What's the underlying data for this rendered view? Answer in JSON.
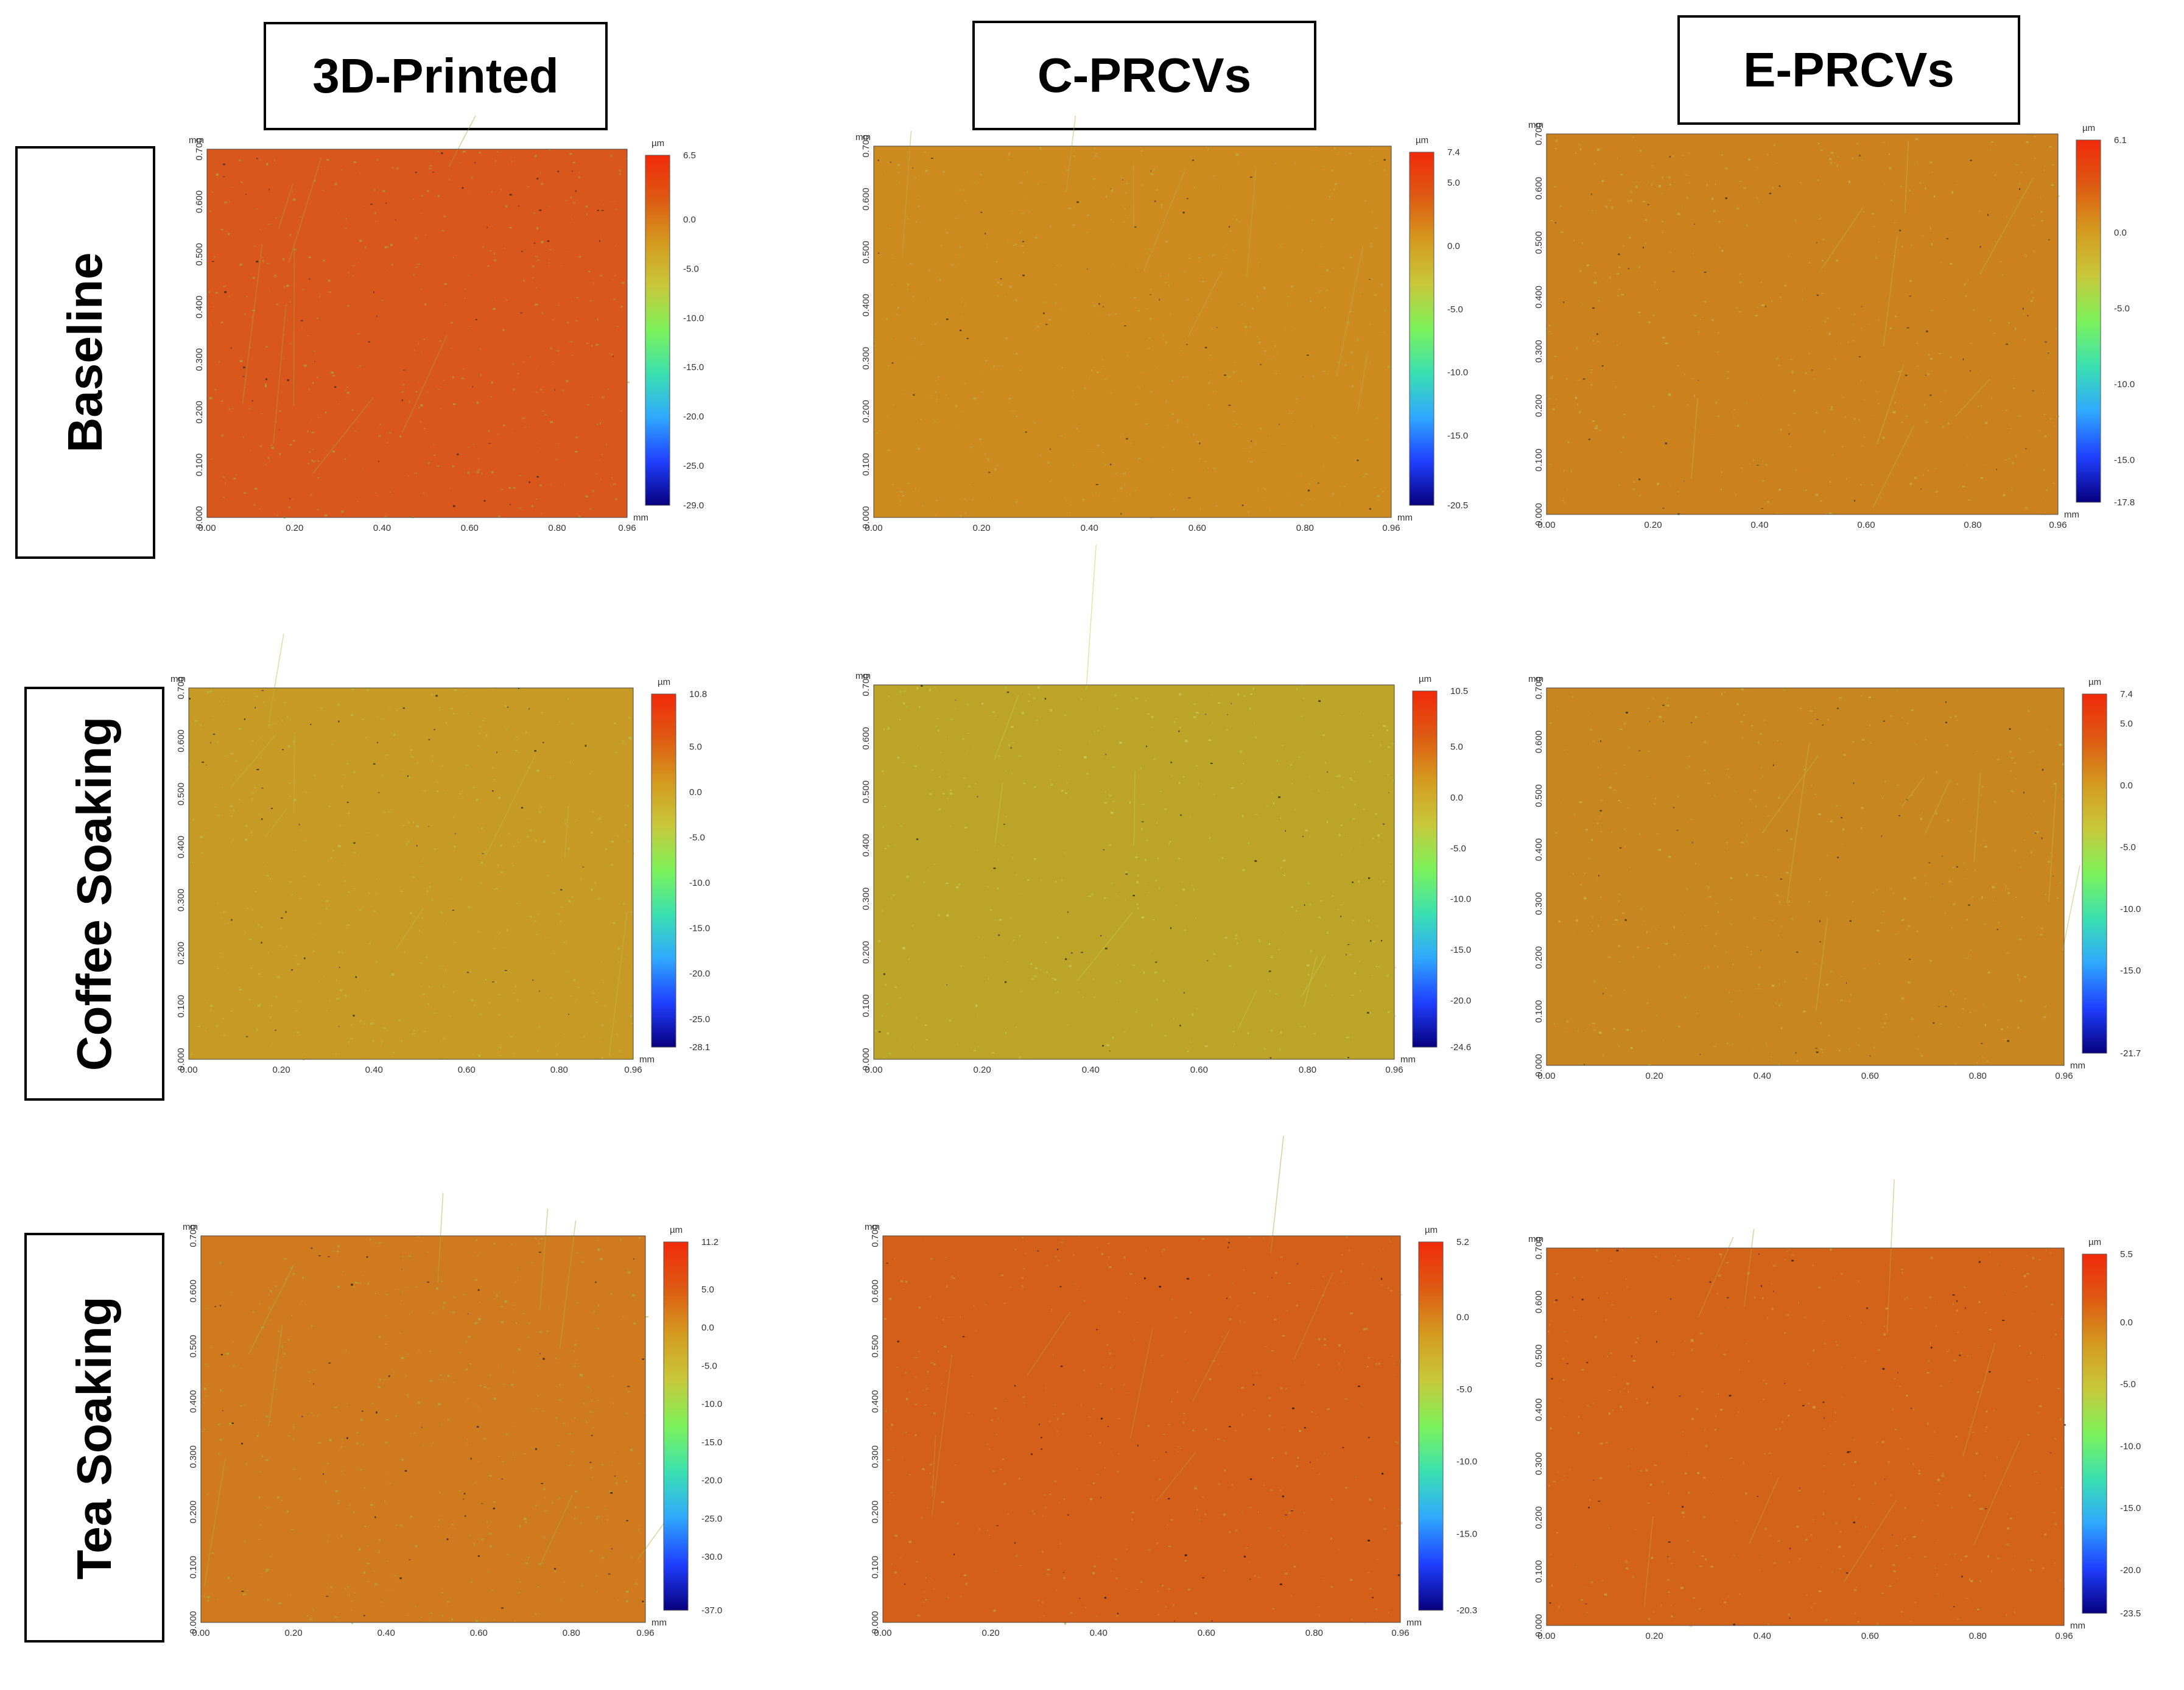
{
  "column_headers": [
    "3D-Printed",
    "C-PRCVs",
    "E-PRCVs"
  ],
  "row_headers": [
    "Baseline",
    "Coffee Soaking",
    "Tea Soaking"
  ],
  "axis": {
    "unit_x": "mm",
    "unit_y": "mm",
    "unit_z": "µm",
    "x_ticks": [
      "0.00",
      "0.20",
      "0.40",
      "0.60",
      "0.80",
      "0.96"
    ],
    "y_ticks": [
      "0.000",
      "0.100",
      "0.200",
      "0.300",
      "0.400",
      "0.500",
      "0.600",
      "0.700"
    ]
  },
  "colormap": [
    "#07007f",
    "#1f3fff",
    "#2fa8ff",
    "#3ae0b0",
    "#7cf25a",
    "#c8c83a",
    "#d49a1e",
    "#de5a12",
    "#f22a0a"
  ],
  "panels": [
    {
      "id": "baseline-3d-printed",
      "color_min": -29.0,
      "color_max": 6.5,
      "colorbar_labels": [
        "6.5",
        "0.0",
        "-5.0",
        "-10.0",
        "-15.0",
        "-20.0",
        "-25.0",
        "-29.0"
      ],
      "surface_color": "#d9561c",
      "speckle_color": "#a3a63a",
      "dark_color": "#2a2a0e"
    },
    {
      "id": "baseline-c-prcvs",
      "color_min": -20.5,
      "color_max": 7.4,
      "colorbar_labels": [
        "7.4",
        "5.0",
        "0.0",
        "-5.0",
        "-10.0",
        "-15.0",
        "-20.5"
      ],
      "surface_color": "#cc8a1f",
      "speckle_color": "#b8b044",
      "dark_color": "#333318"
    },
    {
      "id": "baseline-e-prcvs",
      "color_min": -17.8,
      "color_max": 6.1,
      "colorbar_labels": [
        "6.1",
        "0.0",
        "-5.0",
        "-10.0",
        "-15.0",
        "-17.8"
      ],
      "surface_color": "#cb811d",
      "speckle_color": "#bdb54a",
      "dark_color": "#333318"
    },
    {
      "id": "coffee-3d-printed",
      "color_min": -28.1,
      "color_max": 10.8,
      "colorbar_labels": [
        "10.8",
        "5.0",
        "0.0",
        "-5.0",
        "-10.0",
        "-15.0",
        "-20.0",
        "-25.0",
        "-28.1"
      ],
      "surface_color": "#c69a25",
      "speckle_color": "#b9bf44",
      "dark_color": "#262610"
    },
    {
      "id": "coffee-c-prcvs",
      "color_min": -24.6,
      "color_max": 10.5,
      "colorbar_labels": [
        "10.5",
        "5.0",
        "0.0",
        "-5.0",
        "-10.0",
        "-15.0",
        "-20.0",
        "-24.6"
      ],
      "surface_color": "#bba427",
      "speckle_color": "#c6cc52",
      "dark_color": "#2c2c12"
    },
    {
      "id": "coffee-e-prcvs",
      "color_min": -21.7,
      "color_max": 7.4,
      "colorbar_labels": [
        "7.4",
        "5.0",
        "0.0",
        "-5.0",
        "-10.0",
        "-15.0",
        "-21.7"
      ],
      "surface_color": "#c7861f",
      "speckle_color": "#bfb648",
      "dark_color": "#2f2f14"
    },
    {
      "id": "tea-3d-printed",
      "color_min": -37.0,
      "color_max": 11.2,
      "colorbar_labels": [
        "11.2",
        "5.0",
        "0.0",
        "-5.0",
        "-10.0",
        "-15.0",
        "-20.0",
        "-25.0",
        "-30.0",
        "-37.0"
      ],
      "surface_color": "#cf7a1f",
      "speckle_color": "#aab040",
      "dark_color": "#1a1a0a"
    },
    {
      "id": "tea-c-prcvs",
      "color_min": -20.3,
      "color_max": 5.2,
      "colorbar_labels": [
        "5.2",
        "0.0",
        "-5.0",
        "-10.0",
        "-15.0",
        "-20.3"
      ],
      "surface_color": "#d35f18",
      "speckle_color": "#c09a3a",
      "dark_color": "#111108"
    },
    {
      "id": "tea-e-prcvs",
      "color_min": -23.5,
      "color_max": 5.5,
      "colorbar_labels": [
        "5.5",
        "0.0",
        "-5.0",
        "-10.0",
        "-15.0",
        "-20.0",
        "-23.5"
      ],
      "surface_color": "#d4631a",
      "speckle_color": "#c3a040",
      "dark_color": "#221a0c"
    }
  ]
}
